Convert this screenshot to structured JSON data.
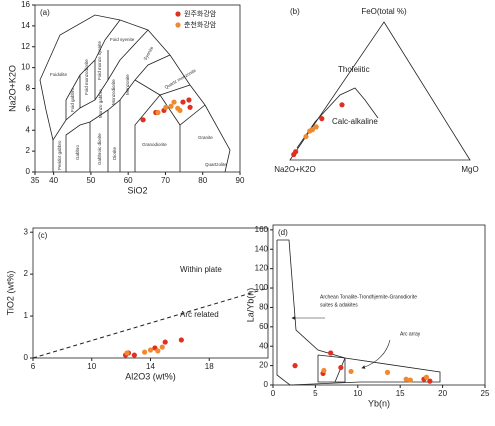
{
  "chart_data": [
    {
      "type": "scatter",
      "panel": "(a)",
      "xlabel": "SiO2",
      "ylabel": "Na2O+K2O",
      "xlim": [
        35,
        90
      ],
      "ylim": [
        0,
        16
      ],
      "xticks": [
        35,
        40,
        50,
        60,
        70,
        80,
        90
      ],
      "yticks": [
        0,
        2,
        4,
        6,
        8,
        10,
        12,
        14,
        16
      ],
      "annotations": [
        "Foidolite",
        "Foid syenite",
        "Foid monzo syenite",
        "Foid monzodiorite",
        "Foid gabbro",
        "Syenite",
        "Monzonite",
        "Monzodiorite",
        "Monzo gabbro",
        "Quartz monzonite",
        "Peridot gabbro",
        "Gabbro",
        "Gabbroic diorite",
        "Diorite",
        "Granodiorite",
        "Granite",
        "Quartzolite"
      ],
      "series": [
        {
          "name": "원주화강암",
          "color": "#e03020",
          "x": [
            64.0,
            67.4,
            69.6,
            74.7,
            76.3,
            76.6
          ],
          "values": [
            5.0,
            5.7,
            5.9,
            6.7,
            6.9,
            6.2
          ]
        },
        {
          "name": "춘천화강암",
          "color": "#f08a30",
          "x": [
            68.0,
            71.5,
            72.3,
            73.3,
            73.9,
            70.1
          ],
          "values": [
            5.7,
            6.3,
            6.7,
            6.1,
            5.9,
            6.2
          ]
        }
      ]
    },
    {
      "type": "ternary",
      "panel": "(b)",
      "apex_labels": [
        "FeO(total %)",
        "Na2O+K2O",
        "MgO"
      ],
      "annotations": [
        "Tholeiitic",
        "Calc-alkaline"
      ],
      "series": [
        {
          "name": "원주화강암",
          "color": "#e03020",
          "a": [
            96,
            94,
            68,
            52
          ],
          "f": [
            4,
            6,
            30,
            40
          ],
          "m": [
            0,
            0,
            2,
            8
          ]
        },
        {
          "name": "춘천화강암",
          "color": "#f08a30",
          "a": [
            83,
            79,
            77,
            74
          ],
          "f": [
            17,
            21,
            22,
            24
          ],
          "m": [
            0,
            0,
            1,
            2
          ]
        }
      ]
    },
    {
      "type": "scatter",
      "panel": "(c)",
      "xlabel": "Al2O3 (wt%)",
      "ylabel": "TiO2 (wt%)",
      "xlim": [
        6,
        22
      ],
      "ylim": [
        0,
        3.1
      ],
      "xticks": [
        6,
        10,
        14,
        18
      ],
      "yticks": [
        0,
        1,
        2,
        3
      ],
      "annotations": [
        "Within plate",
        "Arc related"
      ],
      "series": [
        {
          "name": "원주화강암",
          "color": "#e03020",
          "x": [
            12.3,
            12.5,
            12.9,
            14.3,
            15.0,
            16.1
          ],
          "values": [
            0.07,
            0.12,
            0.07,
            0.24,
            0.38,
            0.43
          ]
        },
        {
          "name": "춘천화강암",
          "color": "#f08a30",
          "x": [
            12.4,
            13.6,
            14.0,
            14.5,
            14.8
          ],
          "values": [
            0.12,
            0.14,
            0.19,
            0.17,
            0.26
          ]
        }
      ]
    },
    {
      "type": "scatter",
      "panel": "(d)",
      "xlabel": "Yb(n)",
      "ylabel": "La/Yb(n)",
      "xlim": [
        0,
        25
      ],
      "ylim": [
        0,
        165
      ],
      "xticks": [
        0,
        5,
        10,
        15,
        20,
        25
      ],
      "yticks": [
        0,
        20,
        40,
        60,
        80,
        100,
        120,
        140,
        160
      ],
      "annotations": [
        "Archean Tonalite-Trondhjemite-Granodiorite",
        "suites & adakites",
        "Arc array"
      ],
      "series": [
        {
          "name": "원주화강암",
          "color": "#e03020",
          "x": [
            2.6,
            5.9,
            6.8,
            8.0,
            17.8,
            18.5
          ],
          "values": [
            20,
            12,
            33,
            18,
            6,
            4
          ]
        },
        {
          "name": "춘천화강암",
          "color": "#f08a30",
          "x": [
            6.0,
            9.2,
            13.5,
            15.7,
            16.2,
            18.1
          ],
          "values": [
            15,
            14,
            13,
            6,
            5,
            8
          ]
        }
      ]
    }
  ]
}
